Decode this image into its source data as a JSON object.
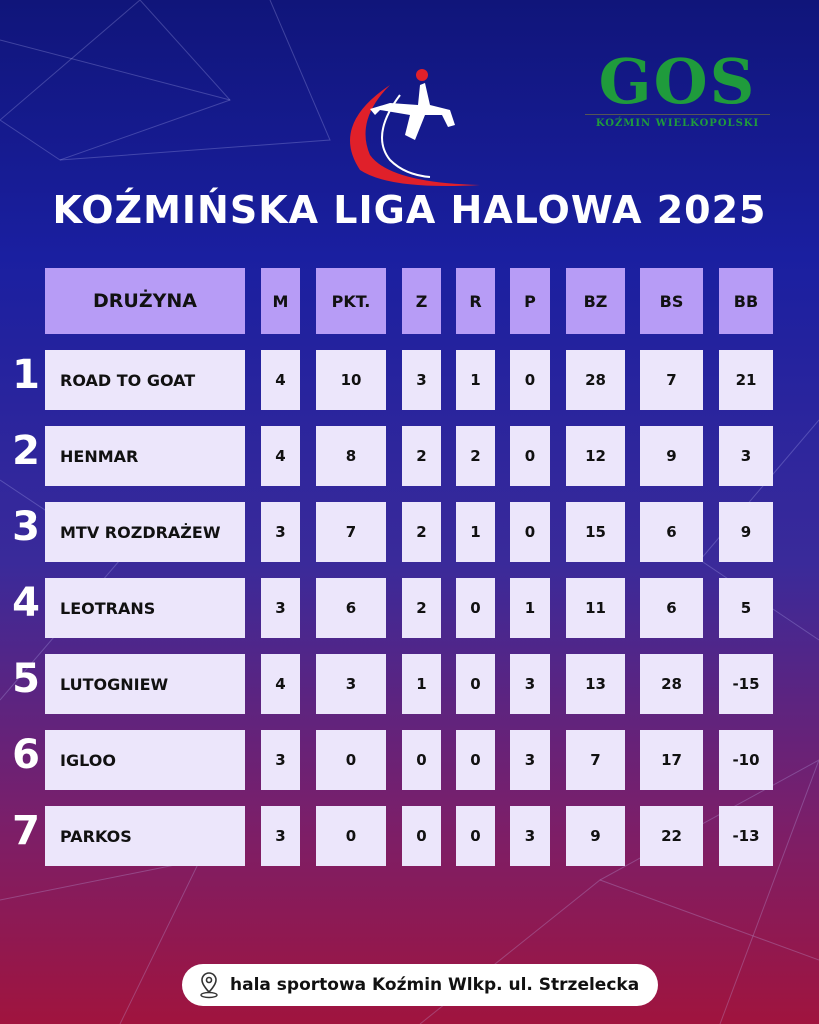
{
  "title": "KOŹMIŃSKA LIGA HALOWA 2025",
  "gos_logo": {
    "text": "GOS",
    "subtitle": "KOŹMIN WIELKOPOLSKI"
  },
  "headers": [
    "DRUŻYNA",
    "M",
    "PKT.",
    "Z",
    "R",
    "P",
    "BZ",
    "BS",
    "BB"
  ],
  "rows": [
    {
      "rank": "1",
      "cells": [
        "ROAD TO GOAT",
        "4",
        "10",
        "3",
        "1",
        "0",
        "28",
        "7",
        "21"
      ]
    },
    {
      "rank": "2",
      "cells": [
        "HENMAR",
        "4",
        "8",
        "2",
        "2",
        "0",
        "12",
        "9",
        "3"
      ]
    },
    {
      "rank": "3",
      "cells": [
        "MTV ROZDRAŻEW",
        "3",
        "7",
        "2",
        "1",
        "0",
        "15",
        "6",
        "9"
      ]
    },
    {
      "rank": "4",
      "cells": [
        "LEOTRANS",
        "3",
        "6",
        "2",
        "0",
        "1",
        "11",
        "6",
        "5"
      ]
    },
    {
      "rank": "5",
      "cells": [
        "LUTOGNIEW",
        "4",
        "3",
        "1",
        "0",
        "3",
        "13",
        "28",
        "-15"
      ]
    },
    {
      "rank": "6",
      "cells": [
        "IGLOO",
        "3",
        "0",
        "0",
        "0",
        "3",
        "7",
        "17",
        "-10"
      ]
    },
    {
      "rank": "7",
      "cells": [
        "PARKOS",
        "3",
        "0",
        "0",
        "0",
        "3",
        "9",
        "22",
        "-13"
      ]
    }
  ],
  "location": {
    "icon": "map-pin-icon",
    "text": "hala sportowa Koźmin Wlkp. ul. Strzelecka"
  },
  "colors": {
    "header_bg": "#b79cf6",
    "cell_bg": "#ece6fb",
    "logo_green": "#1f9b3c",
    "accent_red": "#e0202a"
  }
}
